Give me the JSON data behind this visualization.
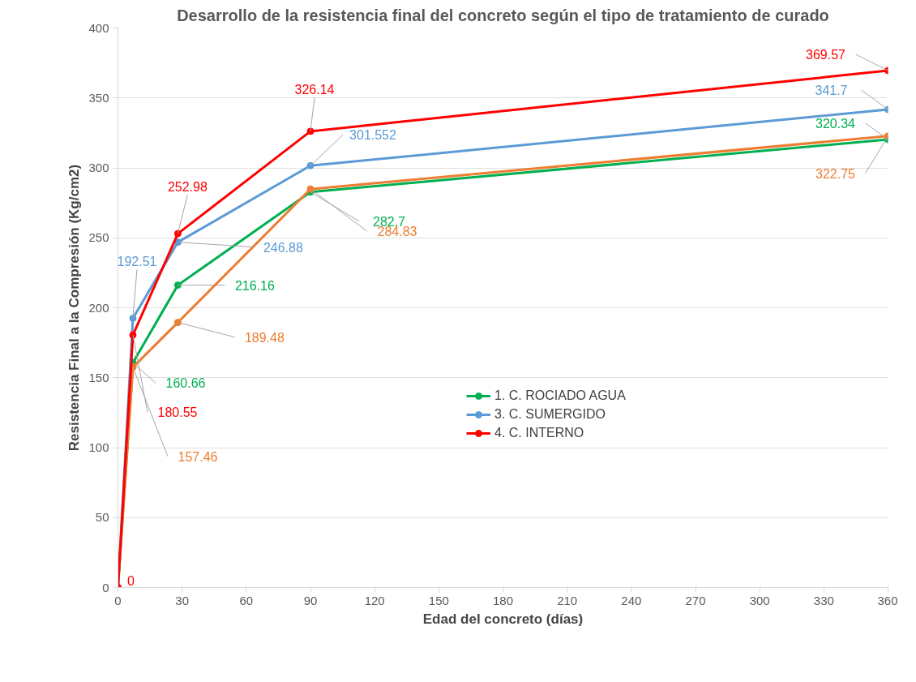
{
  "chart_data": {
    "type": "line",
    "title": "Desarrollo de la resistencia final del concreto según el tipo de tratamiento de curado",
    "xlabel": "Edad del concreto (días)",
    "ylabel": "Resistencia Final a la Compresión (Kg/cm2)",
    "x": [
      0,
      7,
      28,
      90,
      360
    ],
    "series": [
      {
        "name": "1. C. ROCIADO AGUA",
        "color": "#00b050",
        "values": [
          0,
          160.66,
          216.16,
          282.7,
          320.34
        ],
        "value_labels": [
          null,
          "160.66",
          "216.16",
          "282.7",
          "320.34"
        ]
      },
      {
        "color": "#ed7d31",
        "values": [
          0,
          157.46,
          189.48,
          284.83,
          322.75
        ],
        "value_labels": [
          null,
          "157.46",
          "189.48",
          "284.83",
          "322.75"
        ]
      },
      {
        "name": "3. C. SUMERGIDO",
        "color": "#5b9bd5",
        "values": [
          0,
          192.51,
          246.88,
          301.552,
          341.7
        ],
        "value_labels": [
          null,
          "192.51",
          "246.88",
          "301.552",
          "341.7"
        ]
      },
      {
        "name": "4. C. INTERNO",
        "color": "#ff0000",
        "values": [
          0,
          180.55,
          252.98,
          326.14,
          369.57
        ],
        "value_labels": [
          "0",
          "180.55",
          "252.98",
          "326.14",
          "369.57"
        ]
      }
    ],
    "xlim": [
      0,
      360
    ],
    "xticks": [
      0,
      30,
      60,
      90,
      120,
      150,
      180,
      210,
      240,
      270,
      300,
      330,
      360
    ],
    "ylim": [
      0,
      400
    ],
    "yticks": [
      0,
      50,
      100,
      150,
      200,
      250,
      300,
      350,
      400
    ],
    "grid": "y",
    "legend": "right",
    "marker": "circle",
    "line_style": "solid"
  }
}
